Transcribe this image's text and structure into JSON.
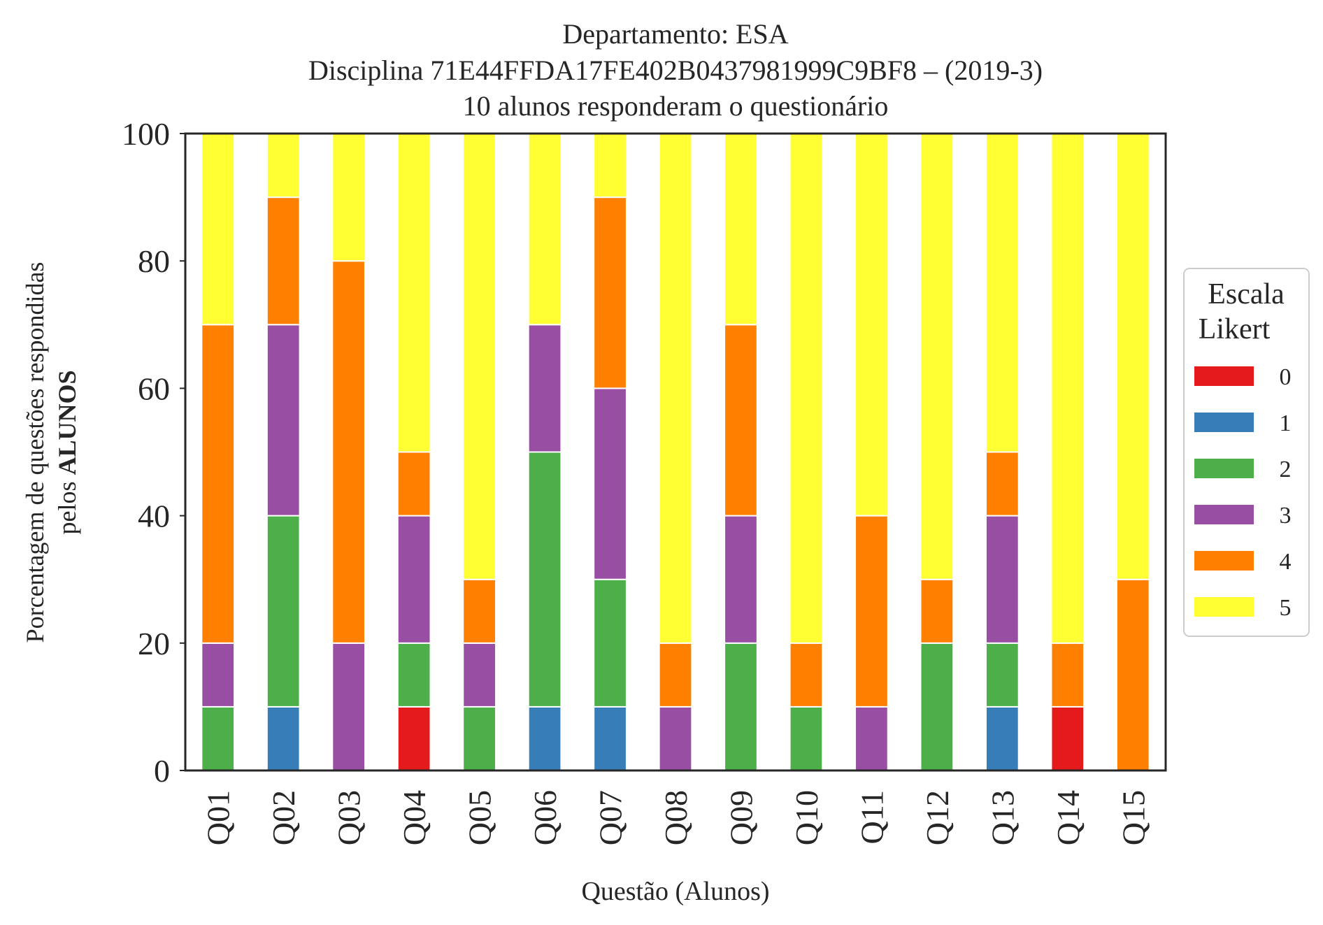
{
  "chart_data": {
    "type": "bar",
    "stacked": true,
    "title_lines": [
      "Departamento: ESA",
      "Disciplina 71E44FFDA17FE402B0437981999C9BF8 – (2019-3)",
      "10 alunos responderam o questionário"
    ],
    "xlabel": "Questão (Alunos)",
    "ylabel_line1": "Porcentagem de questões respondidas",
    "ylabel_line2_prefix": "pelos ",
    "ylabel_line2_bold": "ALUNOS",
    "ylim": [
      0,
      100
    ],
    "yticks": [
      0,
      20,
      40,
      60,
      80,
      100
    ],
    "grid": false,
    "legend_placement": "right",
    "legend_title_lines": [
      "Escala",
      "Likert"
    ],
    "categories": [
      "Q01",
      "Q02",
      "Q03",
      "Q04",
      "Q05",
      "Q06",
      "Q07",
      "Q08",
      "Q09",
      "Q10",
      "Q11",
      "Q12",
      "Q13",
      "Q14",
      "Q15"
    ],
    "series": [
      {
        "name": "0",
        "color": "#e41a1c",
        "values": [
          0,
          0,
          0,
          10,
          0,
          0,
          0,
          0,
          0,
          0,
          0,
          0,
          0,
          10,
          0
        ]
      },
      {
        "name": "1",
        "color": "#377eb8",
        "values": [
          0,
          10,
          0,
          0,
          0,
          10,
          10,
          0,
          0,
          0,
          0,
          0,
          10,
          0,
          0
        ]
      },
      {
        "name": "2",
        "color": "#4daf4a",
        "values": [
          10,
          30,
          0,
          10,
          10,
          40,
          20,
          0,
          20,
          10,
          0,
          20,
          10,
          0,
          0
        ]
      },
      {
        "name": "3",
        "color": "#984ea3",
        "values": [
          10,
          30,
          20,
          20,
          10,
          20,
          30,
          10,
          20,
          0,
          10,
          0,
          20,
          0,
          0
        ]
      },
      {
        "name": "4",
        "color": "#ff7f00",
        "values": [
          50,
          20,
          60,
          10,
          10,
          0,
          30,
          10,
          30,
          10,
          30,
          10,
          10,
          10,
          30
        ]
      },
      {
        "name": "5",
        "color": "#ffff33",
        "values": [
          30,
          10,
          20,
          50,
          70,
          30,
          10,
          80,
          30,
          80,
          60,
          70,
          50,
          80,
          70
        ]
      }
    ]
  }
}
